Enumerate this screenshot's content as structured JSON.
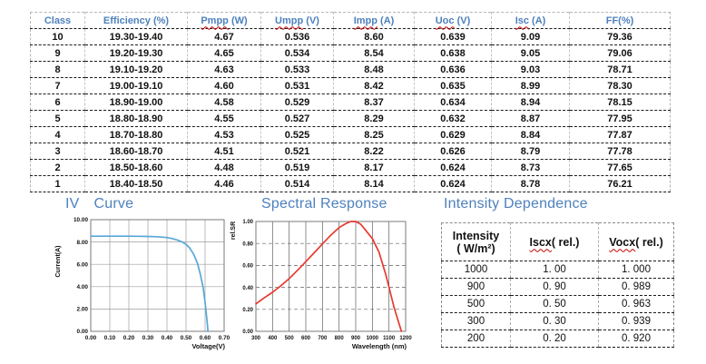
{
  "colors": {
    "accent_blue": "#4E81BD",
    "wavy_red": "#C00000",
    "iv_line": "#58A7D8",
    "sr_line": "#E8392E",
    "grid_gray": "#9e9e9e",
    "grid_dark": "#606060"
  },
  "class_table": {
    "headers": [
      {
        "text": "Class",
        "suffix": "",
        "wavy": false
      },
      {
        "text": "Efficiency",
        "suffix": " (%)",
        "wavy": false
      },
      {
        "text": "Pmpp",
        "suffix": " (W)",
        "wavy": true
      },
      {
        "text": "Umpp",
        "suffix": " (V)",
        "wavy": true
      },
      {
        "text": "Impp",
        "suffix": " (A)",
        "wavy": true
      },
      {
        "text": "Uoc",
        "suffix": " (V)",
        "wavy": true
      },
      {
        "text": "Isc",
        "suffix": " (A)",
        "wavy": true
      },
      {
        "text": "FF",
        "suffix": "(%)",
        "wavy": false
      }
    ],
    "rows": [
      [
        "10",
        "19.30-19.40",
        "4.67",
        "0.536",
        "8.60",
        "0.639",
        "9.09",
        "79.36"
      ],
      [
        "9",
        "19.20-19.30",
        "4.65",
        "0.534",
        "8.54",
        "0.638",
        "9.05",
        "79.06"
      ],
      [
        "8",
        "19.10-19.20",
        "4.63",
        "0.533",
        "8.48",
        "0.636",
        "9.03",
        "78.71"
      ],
      [
        "7",
        "19.00-19.10",
        "4.60",
        "0.531",
        "8.42",
        "0.635",
        "8.99",
        "78.30"
      ],
      [
        "6",
        "18.90-19.00",
        "4.58",
        "0.529",
        "8.37",
        "0.634",
        "8.94",
        "78.15"
      ],
      [
        "5",
        "18.80-18.90",
        "4.55",
        "0.527",
        "8.29",
        "0.632",
        "8.87",
        "77.95"
      ],
      [
        "4",
        "18.70-18.80",
        "4.53",
        "0.525",
        "8.25",
        "0.629",
        "8.84",
        "77.87"
      ],
      [
        "3",
        "18.60-18.70",
        "4.51",
        "0.521",
        "8.22",
        "0.626",
        "8.79",
        "77.78"
      ],
      [
        "2",
        "18.50-18.60",
        "4.48",
        "0.519",
        "8.17",
        "0.624",
        "8.73",
        "77.65"
      ],
      [
        "1",
        "18.40-18.50",
        "4.46",
        "0.514",
        "8.14",
        "0.624",
        "8.78",
        "76.21"
      ]
    ]
  },
  "sections": {
    "iv_curve": {
      "prefix": "IV",
      "label": "Curve"
    },
    "spectral": {
      "label": "Spectral Response"
    },
    "intensity": {
      "label": "Intensity Dependence"
    }
  },
  "chart_data": [
    {
      "type": "line",
      "title": "IV Curve",
      "xlabel": "Voltage(V)",
      "ylabel": "Current(A)",
      "xlim": [
        0,
        0.7
      ],
      "ylim": [
        0,
        10
      ],
      "xticks": [
        "0.00",
        "0.10",
        "0.20",
        "0.30",
        "0.40",
        "0.50",
        "0.60",
        "0.70"
      ],
      "yticks": [
        "0.00",
        "2.00",
        "4.00",
        "6.00",
        "8.00",
        "10.00"
      ],
      "grid": "on",
      "grid_v_style": "solid",
      "grid_h_style": "solid",
      "grid_color": "#9e9e9e",
      "line_color": "#58A7D8",
      "legend": "none",
      "x": [
        0.0,
        0.05,
        0.1,
        0.15,
        0.2,
        0.25,
        0.3,
        0.35,
        0.4,
        0.43,
        0.46,
        0.48,
        0.5,
        0.52,
        0.54,
        0.56,
        0.575,
        0.59,
        0.6,
        0.608,
        0.615
      ],
      "y": [
        8.52,
        8.52,
        8.52,
        8.52,
        8.52,
        8.51,
        8.5,
        8.47,
        8.4,
        8.3,
        8.15,
        8.0,
        7.8,
        7.45,
        6.9,
        6.1,
        5.1,
        3.9,
        2.6,
        1.3,
        0.0
      ]
    },
    {
      "type": "line",
      "title": "Spectral Response",
      "xlabel": "Wavelength (nm)",
      "ylabel": "rel.SR",
      "xlim": [
        300,
        1200
      ],
      "ylim": [
        0,
        1
      ],
      "xticks": [
        "300",
        "400",
        "500",
        "600",
        "700",
        "800",
        "900",
        "1000",
        "1100",
        "1200"
      ],
      "yticks": [
        "0.00",
        "0.20",
        "0.40",
        "0.60",
        "0.80",
        "1.00"
      ],
      "grid": "on",
      "grid_v_style": "solid",
      "grid_h_style": "dash",
      "grid_color": "#606060",
      "line_color": "#E8392E",
      "legend": "none",
      "x": [
        300,
        350,
        400,
        450,
        500,
        550,
        600,
        650,
        700,
        750,
        800,
        840,
        870,
        900,
        930,
        960,
        1000,
        1040,
        1080,
        1100,
        1130,
        1160,
        1175
      ],
      "y": [
        0.25,
        0.305,
        0.355,
        0.415,
        0.48,
        0.555,
        0.635,
        0.715,
        0.795,
        0.875,
        0.945,
        0.98,
        1.0,
        1.0,
        0.975,
        0.92,
        0.845,
        0.72,
        0.52,
        0.4,
        0.22,
        0.07,
        0.0
      ]
    }
  ],
  "intensity_table": {
    "headers": [
      {
        "line1": "Intensity",
        "line2": "( W/m²)",
        "wavy": false
      },
      {
        "text": "Iscx",
        "suffix": "( rel.)",
        "wavy": true
      },
      {
        "text": "Vocx",
        "suffix": "( rel.)",
        "wavy": true
      }
    ],
    "rows": [
      [
        "1000",
        "1. 00",
        "1. 000"
      ],
      [
        "900",
        "0. 90",
        "0. 989"
      ],
      [
        "500",
        "0. 50",
        "0. 963"
      ],
      [
        "300",
        "0. 30",
        "0. 939"
      ],
      [
        "200",
        "0. 20",
        "0. 920"
      ]
    ]
  }
}
